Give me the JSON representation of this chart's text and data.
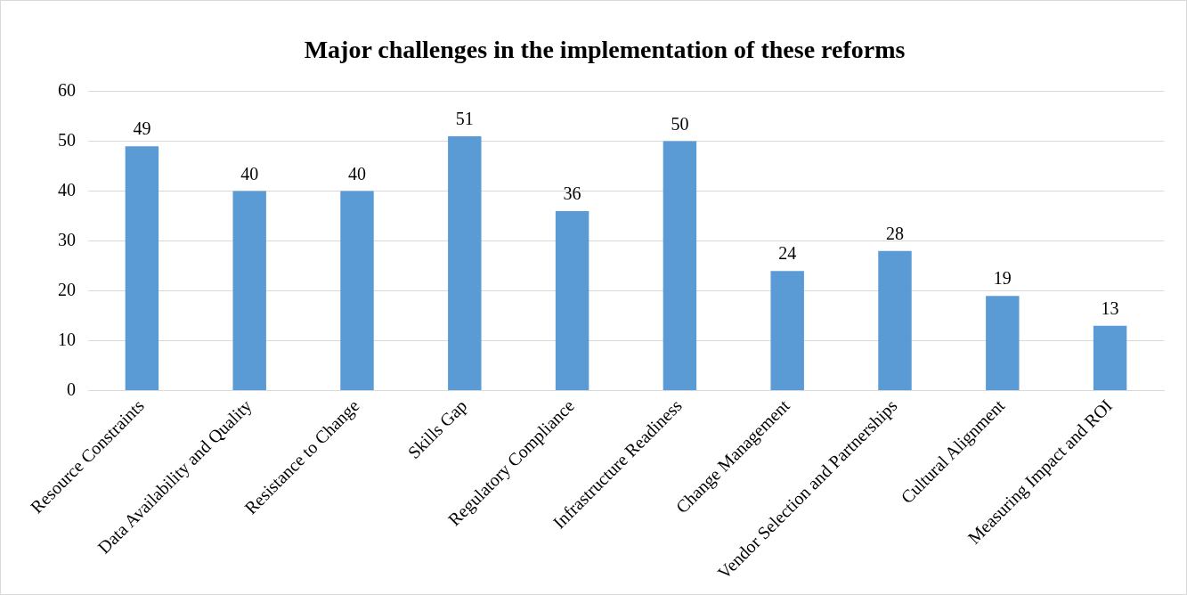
{
  "chart_data": {
    "type": "bar",
    "title": "Major challenges in the implementation of these reforms",
    "categories": [
      "Resource Constraints",
      "Data Availability and Quality",
      "Resistance to Change",
      "Skills Gap",
      "Regulatory Compliance",
      "Infrastructure Readiness",
      "Change Management",
      "Vendor Selection and Partnerships",
      "Cultural Alignment",
      "Measuring Impact and ROI"
    ],
    "values": [
      49,
      40,
      40,
      51,
      36,
      50,
      24,
      28,
      19,
      13
    ],
    "color": "#5b9bd5",
    "ylim": [
      0,
      60
    ],
    "yticks": [
      0,
      10,
      20,
      30,
      40,
      50,
      60
    ],
    "grid": "y",
    "data_labels": true
  }
}
